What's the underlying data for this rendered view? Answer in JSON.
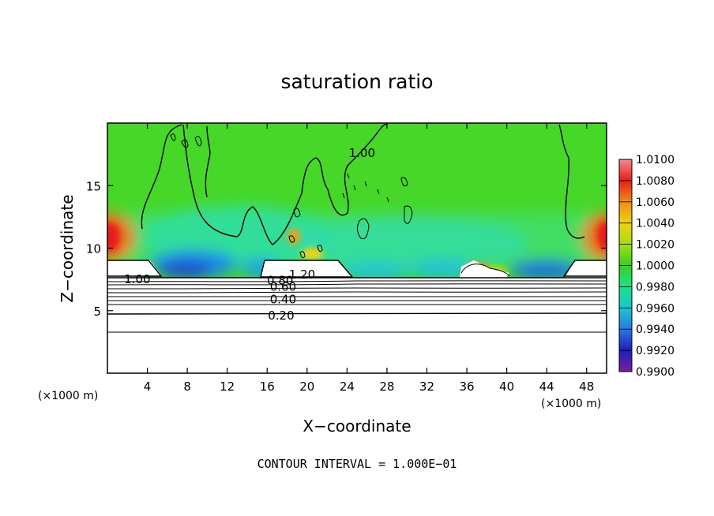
{
  "chart_data": {
    "type": "heatmap",
    "title": "saturation ratio",
    "xlabel": "X−coordinate",
    "ylabel": "Z−coordinate",
    "x_unit_left": "(×1000 m)",
    "x_unit_right": "(×1000 m)",
    "xlim": [
      0,
      50
    ],
    "ylim": [
      0,
      20
    ],
    "xticks": [
      4,
      8,
      12,
      16,
      20,
      24,
      28,
      32,
      36,
      40,
      44,
      48
    ],
    "yticks": [
      5,
      10,
      15
    ],
    "colorbar": {
      "levels": [
        "0.9900",
        "0.9920",
        "0.9940",
        "0.9960",
        "0.9980",
        "1.0000",
        "1.0020",
        "1.0040",
        "1.0060",
        "1.0080",
        "1.0100"
      ],
      "colors": [
        "#7a1fa0",
        "#1e1eb4",
        "#2a78e6",
        "#18c8c8",
        "#1ee08c",
        "#34d21e",
        "#a8dc14",
        "#f0d214",
        "#f08c14",
        "#e61e1e",
        "#f08c8c"
      ]
    },
    "contour_labels": [
      {
        "text": "1.00",
        "x": 3.0,
        "z": 7.5
      },
      {
        "text": "1.00",
        "x": 25.5,
        "z": 17.6
      },
      {
        "text": "1.20",
        "x": 19.5,
        "z": 7.9
      },
      {
        "text": "0.80",
        "x": 17.3,
        "z": 7.4
      },
      {
        "text": "0.60",
        "x": 17.6,
        "z": 6.9
      },
      {
        "text": "0.40",
        "x": 17.6,
        "z": 5.9
      },
      {
        "text": "0.20",
        "x": 17.4,
        "z": 4.6
      }
    ],
    "footer": "CONTOUR INTERVAL = 1.000E−01"
  }
}
